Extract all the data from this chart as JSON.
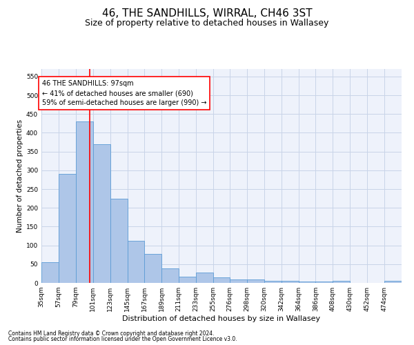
{
  "title": "46, THE SANDHILLS, WIRRAL, CH46 3ST",
  "subtitle": "Size of property relative to detached houses in Wallasey",
  "xlabel": "Distribution of detached houses by size in Wallasey",
  "ylabel": "Number of detached properties",
  "footnote1": "Contains HM Land Registry data © Crown copyright and database right 2024.",
  "footnote2": "Contains public sector information licensed under the Open Government Licence v3.0.",
  "annotation_line1": "46 THE SANDHILLS: 97sqm",
  "annotation_line2": "← 41% of detached houses are smaller (690)",
  "annotation_line3": "59% of semi-detached houses are larger (990) →",
  "bar_color": "#aec6e8",
  "bar_edge_color": "#5b9bd5",
  "red_line_x": 97,
  "categories": [
    "35sqm",
    "57sqm",
    "79sqm",
    "101sqm",
    "123sqm",
    "145sqm",
    "167sqm",
    "189sqm",
    "211sqm",
    "233sqm",
    "255sqm",
    "276sqm",
    "298sqm",
    "320sqm",
    "342sqm",
    "364sqm",
    "386sqm",
    "408sqm",
    "430sqm",
    "452sqm",
    "474sqm"
  ],
  "bin_edges": [
    35,
    57,
    79,
    101,
    123,
    145,
    167,
    189,
    211,
    233,
    255,
    276,
    298,
    320,
    342,
    364,
    386,
    408,
    430,
    452,
    474,
    496
  ],
  "values": [
    55,
    290,
    430,
    370,
    225,
    113,
    77,
    38,
    17,
    27,
    15,
    10,
    10,
    6,
    6,
    3,
    3,
    5,
    0,
    0,
    5
  ],
  "ylim": [
    0,
    570
  ],
  "yticks": [
    0,
    50,
    100,
    150,
    200,
    250,
    300,
    350,
    400,
    450,
    500,
    550
  ],
  "background_color": "#eef2fb",
  "grid_color": "#c8d4e8",
  "title_fontsize": 11,
  "subtitle_fontsize": 9,
  "annotation_fontsize": 7,
  "axis_label_fontsize": 7.5,
  "tick_fontsize": 6.5,
  "footnote_fontsize": 5.5
}
